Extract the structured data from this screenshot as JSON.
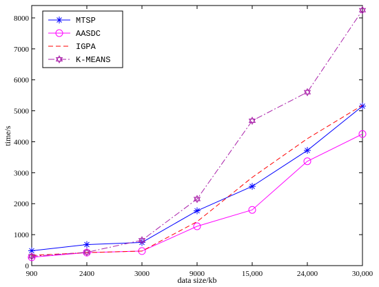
{
  "chart_data": {
    "type": "line",
    "title": "",
    "xlabel": "data size/kb",
    "ylabel": "time/s",
    "categories": [
      "900",
      "2400",
      "3000",
      "9000",
      "15,000",
      "24,000",
      "30,000"
    ],
    "ylim": [
      0,
      8400
    ],
    "yticks": [
      0,
      1000,
      2000,
      3000,
      4000,
      5000,
      6000,
      7000,
      8000
    ],
    "grid": false,
    "legend_position": "top-left",
    "series": [
      {
        "name": "MTSP",
        "values": [
          480,
          680,
          750,
          1770,
          2560,
          3720,
          5150
        ],
        "color": "#0000ff",
        "dash": "solid",
        "marker": "asterisk"
      },
      {
        "name": "AASDC",
        "values": [
          270,
          420,
          470,
          1270,
          1800,
          3370,
          4250
        ],
        "color": "#ff00ff",
        "dash": "solid",
        "marker": "circle"
      },
      {
        "name": "IGPA",
        "values": [
          330,
          420,
          470,
          1420,
          2850,
          4100,
          5180
        ],
        "color": "#ff0000",
        "dash": "dashed",
        "marker": "none"
      },
      {
        "name": "K-MEANS",
        "values": [
          300,
          430,
          820,
          2150,
          4680,
          5600,
          8250
        ],
        "color": "#aa22aa",
        "dash": "dashdot",
        "marker": "hexagram"
      }
    ]
  }
}
